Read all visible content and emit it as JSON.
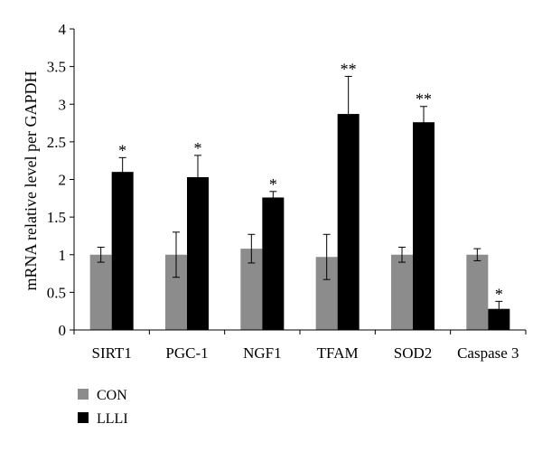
{
  "chart_data": {
    "type": "bar",
    "title": "",
    "xlabel": "",
    "ylabel": "mRNA relative level per GAPDH",
    "ylim": [
      0,
      4
    ],
    "yticks": [
      "0",
      "0.5",
      "1",
      "1.5",
      "2",
      "2.5",
      "3",
      "3.5",
      "4"
    ],
    "grid": false,
    "legend_position": "bottom-left",
    "categories": [
      "SIRT1",
      "PGC-1",
      "NGF1",
      "TFAM",
      "SOD2",
      "Caspase 3"
    ],
    "series": [
      {
        "name": "CON",
        "color": "#8c8c8c",
        "values": [
          1.0,
          1.0,
          1.08,
          0.97,
          1.0,
          1.0
        ],
        "errors": [
          0.1,
          0.3,
          0.19,
          0.3,
          0.1,
          0.08
        ],
        "significance": [
          "",
          "",
          "",
          "",
          "",
          ""
        ]
      },
      {
        "name": "LLLI",
        "color": "#000000",
        "values": [
          2.1,
          2.03,
          1.76,
          2.87,
          2.76,
          0.28
        ],
        "errors": [
          0.19,
          0.29,
          0.08,
          0.5,
          0.21,
          0.1
        ],
        "significance": [
          "*",
          "*",
          "*",
          "**",
          "**",
          "*"
        ]
      }
    ]
  }
}
